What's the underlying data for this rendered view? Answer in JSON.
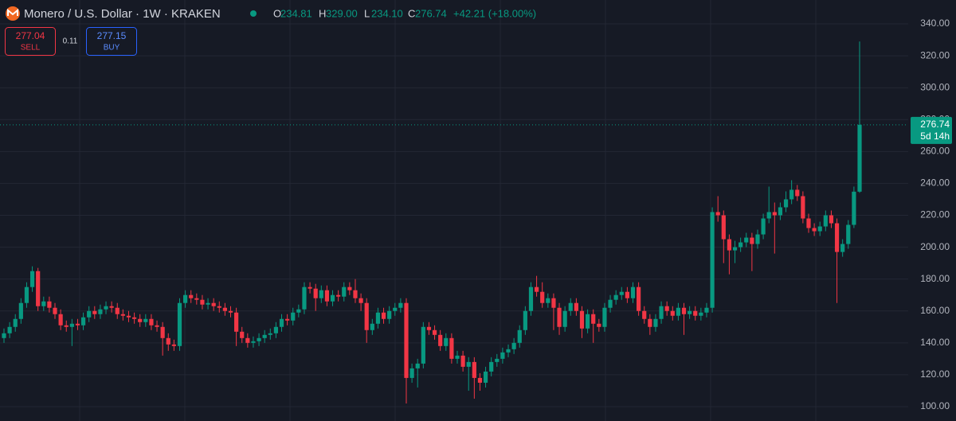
{
  "chart_data": {
    "type": "candlestick",
    "title": "Monero / U.S. Dollar · 1W · KRAKEN",
    "ohlc_header": [
      {
        "label": "O",
        "value": "234.81"
      },
      {
        "label": "H",
        "value": "329.00"
      },
      {
        "label": "L",
        "value": "234.10"
      },
      {
        "label": "C",
        "value": "276.74"
      }
    ],
    "change": "+42.21 (+18.00%)",
    "sell": {
      "price": "277.04",
      "label": "SELL"
    },
    "spread": "0.11",
    "buy": {
      "price": "277.15",
      "label": "BUY"
    },
    "last_price": {
      "label": "276.74",
      "countdown": "5d 14h"
    },
    "up_color": "#089981",
    "down_color": "#f23645",
    "ylim": [
      91,
      355
    ],
    "yticks": [
      {
        "value": 100,
        "label": "100.00"
      },
      {
        "value": 120,
        "label": "120.00"
      },
      {
        "value": 140,
        "label": "140.00"
      },
      {
        "value": 160,
        "label": "160.00"
      },
      {
        "value": 180,
        "label": "180.00"
      },
      {
        "value": 200,
        "label": "200.00"
      },
      {
        "value": 220,
        "label": "220.00"
      },
      {
        "value": 240,
        "label": "240.00"
      },
      {
        "value": 260,
        "label": "260.00"
      },
      {
        "value": 280,
        "label": "280.00"
      },
      {
        "value": 300,
        "label": "300.00"
      },
      {
        "value": 320,
        "label": "320.00"
      },
      {
        "value": 340,
        "label": "340.00"
      }
    ],
    "grid": true,
    "open": [
      143,
      146,
      150,
      155,
      165,
      175,
      185,
      163,
      166,
      162,
      158,
      151,
      150,
      152,
      151,
      156,
      160,
      158,
      161,
      163,
      162,
      158,
      157,
      156,
      155,
      153,
      155,
      151,
      150,
      143,
      139,
      138,
      165,
      170,
      168,
      167,
      164,
      165,
      163,
      162,
      160,
      159,
      147,
      143,
      140,
      141,
      143,
      145,
      146,
      150,
      155,
      154,
      159,
      161,
      175,
      174,
      168,
      173,
      166,
      170,
      169,
      175,
      173,
      168,
      165,
      148,
      152,
      159,
      155,
      160,
      162,
      165,
      118,
      124,
      127,
      150,
      148,
      145,
      138,
      143,
      130,
      132,
      125,
      128,
      118,
      115,
      122,
      128,
      130,
      134,
      136,
      140,
      148,
      160,
      175,
      172,
      165,
      168,
      162,
      150,
      160,
      165,
      160,
      149,
      158,
      152,
      150,
      162,
      167,
      170,
      172,
      168,
      175,
      160,
      155,
      150,
      155,
      163,
      160,
      157,
      162,
      158,
      160,
      157,
      159,
      162,
      222,
      220,
      205,
      198,
      200,
      203,
      206,
      202,
      208,
      218,
      222,
      220,
      225,
      230,
      236,
      232,
      218,
      212,
      210,
      213,
      220,
      215,
      197,
      202,
      214,
      234.81
    ],
    "high": [
      149,
      153,
      158,
      168,
      178,
      188,
      187,
      169,
      169,
      165,
      161,
      154,
      155,
      155,
      159,
      163,
      163,
      164,
      166,
      166,
      165,
      161,
      160,
      159,
      158,
      158,
      158,
      154,
      153,
      146,
      142,
      168,
      173,
      173,
      171,
      170,
      168,
      168,
      166,
      165,
      163,
      162,
      150,
      146,
      144,
      146,
      148,
      149,
      153,
      158,
      158,
      162,
      164,
      178,
      178,
      177,
      176,
      176,
      173,
      173,
      178,
      178,
      180,
      171,
      168,
      155,
      162,
      162,
      163,
      165,
      168,
      168,
      127,
      130,
      153,
      153,
      151,
      148,
      146,
      146,
      135,
      135,
      131,
      131,
      121,
      125,
      131,
      133,
      137,
      139,
      143,
      151,
      163,
      178,
      182,
      178,
      171,
      171,
      165,
      163,
      168,
      168,
      163,
      161,
      161,
      155,
      165,
      170,
      173,
      175,
      175,
      178,
      178,
      163,
      158,
      158,
      166,
      166,
      163,
      165,
      165,
      163,
      163,
      162,
      165,
      225,
      232,
      223,
      208,
      204,
      206,
      209,
      209,
      211,
      221,
      238,
      228,
      228,
      235,
      242,
      239,
      235,
      221,
      215,
      216,
      223,
      223,
      218,
      205,
      217,
      238,
      329
    ],
    "low": [
      140,
      143,
      147,
      152,
      162,
      172,
      160,
      160,
      159,
      155,
      148,
      147,
      138,
      148,
      148,
      153,
      155,
      155,
      158,
      159,
      155,
      154,
      153,
      152,
      150,
      150,
      148,
      147,
      132,
      135,
      135,
      135,
      162,
      165,
      164,
      161,
      161,
      160,
      159,
      157,
      156,
      138,
      140,
      137,
      137,
      138,
      140,
      142,
      143,
      147,
      151,
      151,
      156,
      158,
      171,
      160,
      165,
      163,
      163,
      166,
      166,
      170,
      165,
      160,
      140,
      145,
      149,
      152,
      152,
      157,
      159,
      102,
      115,
      112,
      124,
      145,
      142,
      135,
      135,
      127,
      127,
      122,
      110,
      105,
      110,
      112,
      119,
      125,
      127,
      131,
      133,
      137,
      145,
      157,
      169,
      162,
      162,
      148,
      145,
      147,
      157,
      157,
      143,
      146,
      140,
      147,
      147,
      159,
      164,
      167,
      165,
      165,
      157,
      152,
      145,
      147,
      152,
      157,
      154,
      154,
      145,
      155,
      154,
      154,
      156,
      159,
      216,
      190,
      183,
      190,
      197,
      200,
      185,
      199,
      205,
      215,
      196,
      217,
      222,
      227,
      229,
      215,
      209,
      207,
      207,
      210,
      212,
      165,
      194,
      199,
      212,
      234.1
    ],
    "close": [
      146,
      150,
      155,
      165,
      175,
      185,
      163,
      166,
      162,
      158,
      151,
      150,
      152,
      151,
      156,
      160,
      158,
      161,
      163,
      162,
      158,
      157,
      156,
      155,
      153,
      155,
      151,
      150,
      143,
      139,
      138,
      165,
      170,
      168,
      167,
      164,
      165,
      163,
      162,
      160,
      159,
      147,
      143,
      140,
      141,
      143,
      145,
      146,
      150,
      155,
      154,
      159,
      161,
      175,
      174,
      168,
      173,
      166,
      170,
      169,
      175,
      173,
      168,
      165,
      148,
      152,
      159,
      155,
      160,
      162,
      165,
      118,
      124,
      127,
      150,
      148,
      145,
      138,
      143,
      130,
      132,
      125,
      128,
      118,
      115,
      122,
      128,
      130,
      134,
      136,
      140,
      148,
      160,
      175,
      172,
      165,
      168,
      162,
      150,
      160,
      165,
      160,
      149,
      158,
      152,
      150,
      162,
      167,
      170,
      172,
      168,
      175,
      160,
      155,
      150,
      155,
      163,
      160,
      157,
      162,
      158,
      160,
      157,
      159,
      162,
      222,
      220,
      205,
      198,
      200,
      203,
      206,
      202,
      208,
      218,
      222,
      220,
      225,
      230,
      236,
      232,
      218,
      212,
      210,
      213,
      220,
      215,
      197,
      202,
      214,
      234.81,
      276.74
    ]
  }
}
